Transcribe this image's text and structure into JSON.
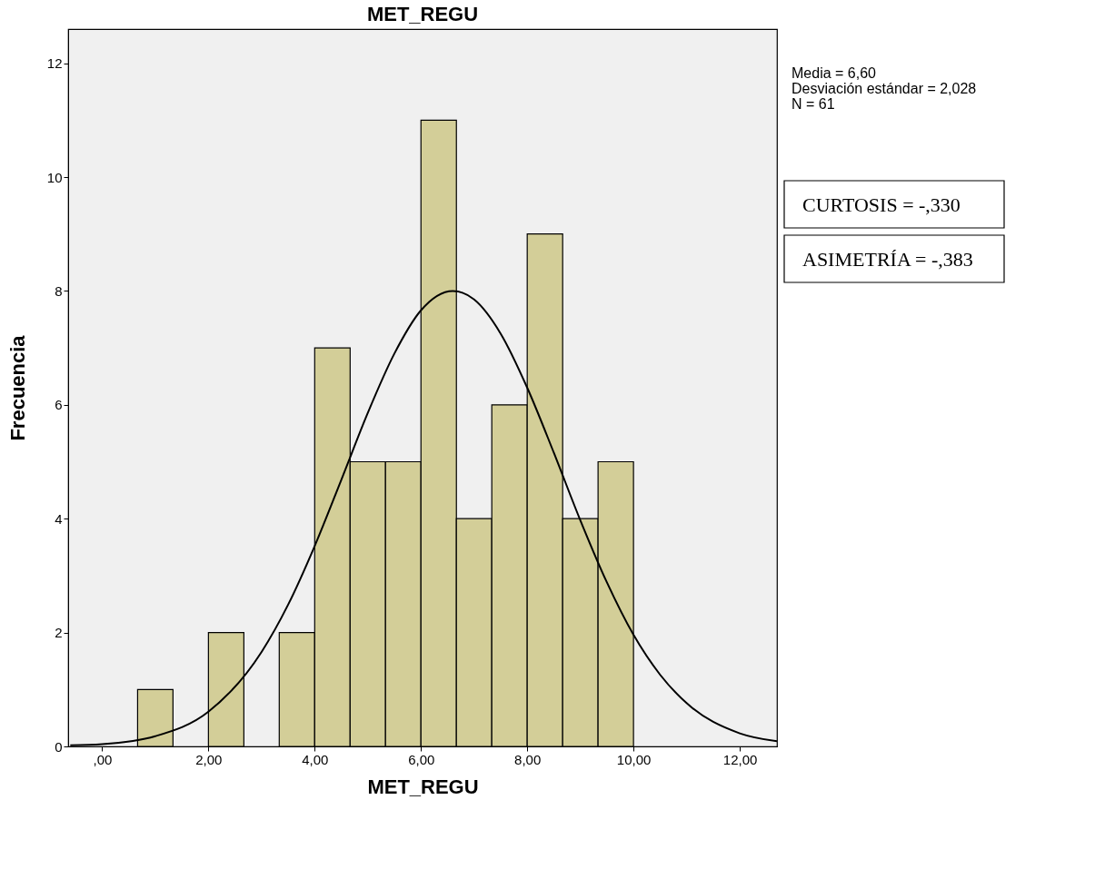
{
  "chart_data": {
    "type": "histogram",
    "title": "MET_REGU",
    "xlabel": "MET_REGU",
    "ylabel": "Frecuencia",
    "bins": [
      0.667,
      1.333,
      2.0,
      2.667,
      3.333,
      4.0,
      4.667,
      5.333,
      6.0,
      6.667,
      7.333,
      8.0,
      8.667,
      9.333,
      10.0
    ],
    "values": [
      1,
      0,
      2,
      0,
      2,
      7,
      5,
      5,
      11,
      4,
      6,
      9,
      4,
      5
    ],
    "color": "#d3ce98",
    "series": [
      {
        "type": "line",
        "color": "#000000",
        "x": [
          -0.6,
          0,
          1,
          2,
          3,
          3.5,
          4,
          4.5,
          5,
          5.5,
          6,
          6.6,
          7,
          7.5,
          8,
          8.5,
          9,
          9.5,
          10,
          10.5,
          11,
          12,
          12.7
        ],
        "values": [
          0.02,
          0.04,
          0.18,
          0.61,
          1.66,
          2.49,
          3.52,
          4.68,
          5.86,
          6.9,
          7.66,
          8.0,
          7.85,
          7.25,
          6.3,
          5.16,
          3.97,
          2.88,
          1.96,
          1.26,
          0.76,
          0.23,
          0.09
        ]
      }
    ],
    "xlim": [
      -0.64,
      12.7
    ],
    "ylim": [
      0,
      12.6
    ],
    "xticks": [
      {
        "value": 0,
        "label": ",00"
      },
      {
        "value": 2,
        "label": "2,00"
      },
      {
        "value": 4,
        "label": "4,00"
      },
      {
        "value": 6,
        "label": "6,00"
      },
      {
        "value": 8,
        "label": "8,00"
      },
      {
        "value": 10,
        "label": "10,00"
      },
      {
        "value": 12,
        "label": "12,00"
      }
    ],
    "yticks": [
      0,
      2,
      4,
      6,
      8,
      10,
      12
    ],
    "grid": false,
    "annotations": [
      "Media = 6,60",
      "Desviación estándar = 2,028",
      "N = 61",
      "CURTOSIS = -,330",
      "ASIMETRÍA = -,383"
    ]
  }
}
